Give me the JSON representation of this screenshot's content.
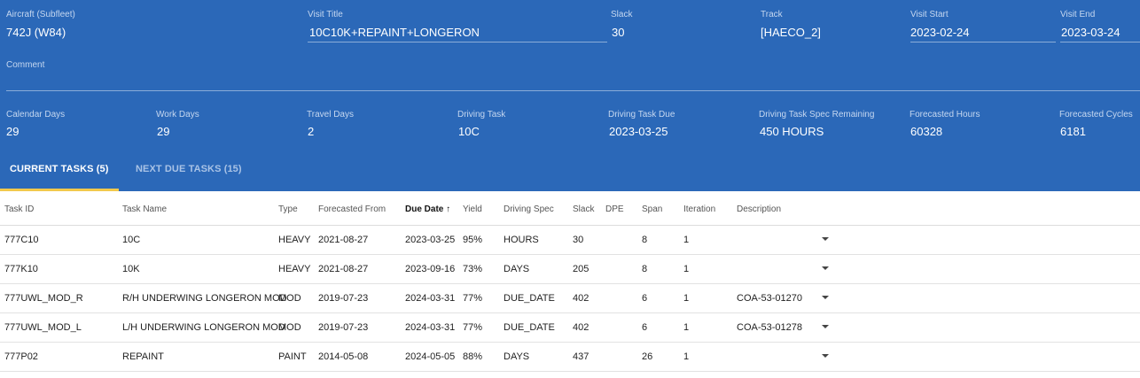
{
  "visit": {
    "fields": [
      {
        "label": "Aircraft (Subfleet)",
        "value": "742J (W84)"
      },
      {
        "label": "Visit Title",
        "value": "10C10K+REPAINT+LONGERON"
      },
      {
        "label": "Slack",
        "value": "30"
      },
      {
        "label": "Track",
        "value": "[HAECO_2]"
      },
      {
        "label": "Visit Start",
        "value": "2023-02-24"
      },
      {
        "label": "Visit End",
        "value": "2023-03-24"
      }
    ],
    "comment_label": "Comment",
    "comment_value": ""
  },
  "stats": [
    {
      "label": "Calendar Days",
      "value": "29"
    },
    {
      "label": "Work Days",
      "value": "29"
    },
    {
      "label": "Travel Days",
      "value": "2"
    },
    {
      "label": "Driving Task",
      "value": "10C"
    },
    {
      "label": "Driving Task Due",
      "value": "2023-03-25"
    },
    {
      "label": "Driving Task Spec Remaining",
      "value": "450 HOURS"
    },
    {
      "label": "Forecasted Hours",
      "value": "60328"
    },
    {
      "label": "Forecasted Cycles",
      "value": "6181"
    }
  ],
  "tabs": [
    {
      "label": "CURRENT TASKS (5)",
      "active": true
    },
    {
      "label": "NEXT DUE TASKS (15)",
      "active": false
    }
  ],
  "table": {
    "columns": [
      "Task ID",
      "Task Name",
      "Type",
      "Forecasted From",
      "Due Date",
      "Yield",
      "Driving Spec",
      "Slack",
      "DPE",
      "Span",
      "Iteration",
      "Description"
    ],
    "sort_indicator": "↑",
    "rows": [
      [
        "777C10",
        "10C",
        "HEAVY",
        "2021-08-27",
        "2023-03-25",
        "95%",
        "HOURS",
        "30",
        "",
        "8",
        "1",
        ""
      ],
      [
        "777K10",
        "10K",
        "HEAVY",
        "2021-08-27",
        "2023-09-16",
        "73%",
        "DAYS",
        "205",
        "",
        "8",
        "1",
        ""
      ],
      [
        "777UWL_MOD_R",
        "R/H UNDERWING LONGERON MOD",
        "MOD",
        "2019-07-23",
        "2024-03-31",
        "77%",
        "DUE_DATE",
        "402",
        "",
        "6",
        "1",
        "COA-53-01270"
      ],
      [
        "777UWL_MOD_L",
        "L/H UNDERWING LONGERON MOD",
        "MOD",
        "2019-07-23",
        "2024-03-31",
        "77%",
        "DUE_DATE",
        "402",
        "",
        "6",
        "1",
        "COA-53-01278"
      ],
      [
        "777P02",
        "REPAINT",
        "PAINT",
        "2014-05-08",
        "2024-05-05",
        "88%",
        "DAYS",
        "437",
        "",
        "26",
        "1",
        ""
      ]
    ]
  },
  "colors": {
    "header_bg": "#2b68b8",
    "tab_ink": "#f2c94c"
  }
}
